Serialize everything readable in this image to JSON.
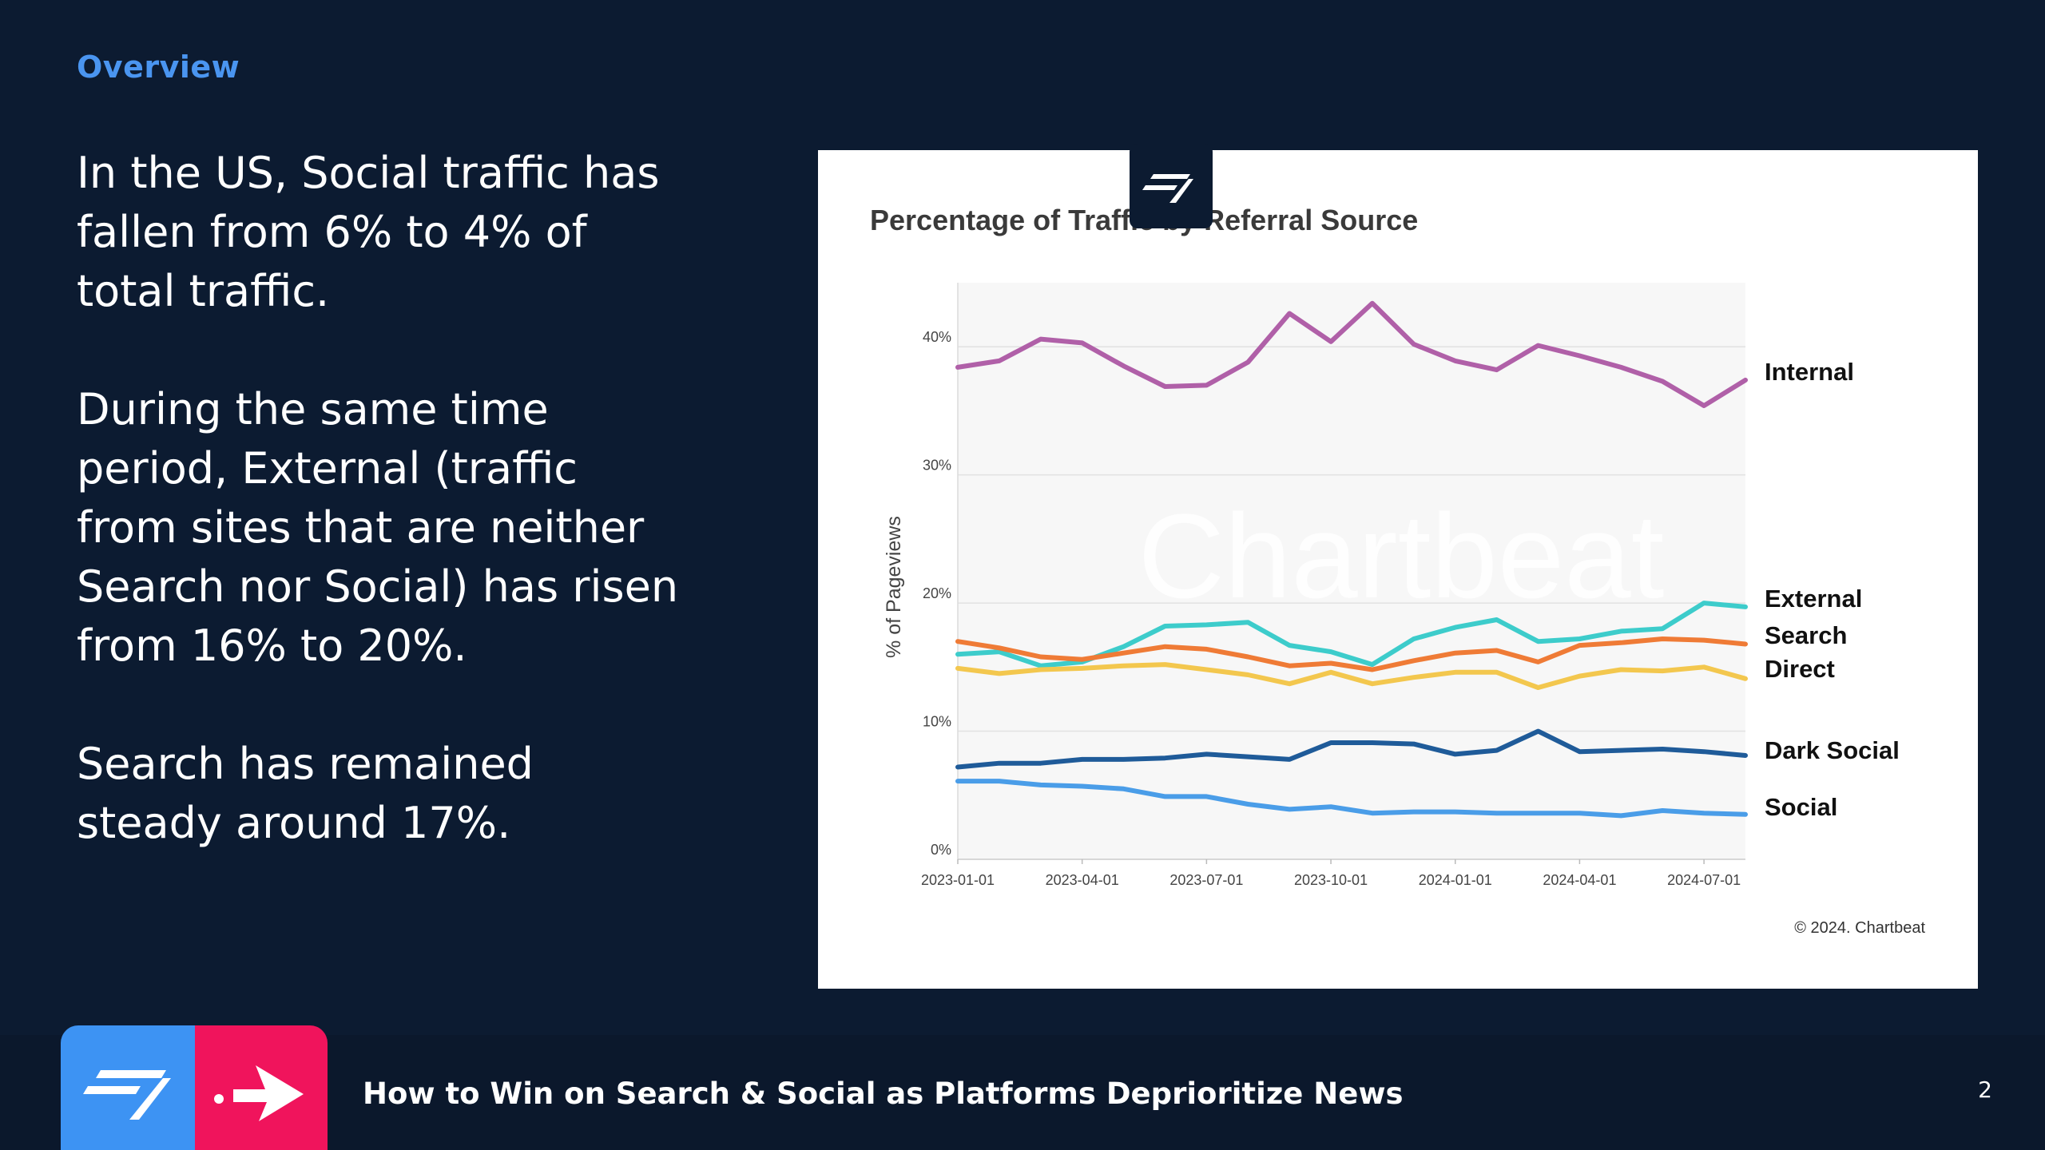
{
  "slide": {
    "section": "Overview",
    "paragraphs": [
      "In the US, Social traffic has fallen from 6% to 4% of total traffic.",
      "During the same time period, External (traffic from sites that are neither Search nor Social) has risen from 16% to 20%.",
      "Search has remained steady around 17%."
    ],
    "footer_title": "How to Win on Search & Social as Platforms Deprioritize News",
    "page_number": "2"
  },
  "colors": {
    "background": "#0c1b31",
    "accent_blue": "#4a95f0",
    "accent_pink": "#f0145c"
  },
  "chart_data": {
    "type": "line",
    "title": "Percentage of Traffic by Referral Source",
    "xlabel": "",
    "ylabel": "% of Pageviews",
    "ylim": [
      0,
      45
    ],
    "yticks": [
      0,
      10,
      20,
      30,
      40
    ],
    "ytick_labels": [
      "0%",
      "10%",
      "20%",
      "30%",
      "40%"
    ],
    "xtick_labels": [
      "2023-01-01",
      "2023-04-01",
      "2023-07-01",
      "2023-10-01",
      "2024-01-01",
      "2024-04-01",
      "2024-07-01"
    ],
    "x": [
      "2023-01-01",
      "2023-02-01",
      "2023-03-01",
      "2023-04-01",
      "2023-05-01",
      "2023-06-01",
      "2023-07-01",
      "2023-08-01",
      "2023-09-01",
      "2023-10-01",
      "2023-11-01",
      "2023-12-01",
      "2024-01-01",
      "2024-02-01",
      "2024-03-01",
      "2024-04-01",
      "2024-05-01",
      "2024-06-01",
      "2024-07-01",
      "2024-08-01"
    ],
    "grid": true,
    "legend": "inline labels at right end of lines",
    "watermark": "Chartbeat",
    "credit": "© 2024. Chartbeat",
    "series": [
      {
        "name": "Internal",
        "color": "#b060a8",
        "values": [
          38.4,
          38.9,
          40.6,
          40.3,
          38.5,
          36.9,
          37.0,
          38.8,
          42.6,
          40.4,
          43.4,
          40.2,
          38.9,
          38.2,
          40.1,
          39.3,
          38.4,
          37.3,
          35.4,
          37.4
        ]
      },
      {
        "name": "External",
        "color": "#3dcccb",
        "values": [
          16.0,
          16.2,
          15.1,
          15.4,
          16.6,
          18.2,
          18.3,
          18.5,
          16.7,
          16.2,
          15.2,
          17.2,
          18.1,
          18.7,
          17.0,
          17.2,
          17.8,
          18.0,
          20.0,
          19.7
        ]
      },
      {
        "name": "Search",
        "color": "#ef7b36",
        "values": [
          17.0,
          16.5,
          15.8,
          15.6,
          16.1,
          16.6,
          16.4,
          15.8,
          15.1,
          15.3,
          14.8,
          15.5,
          16.1,
          16.3,
          15.4,
          16.7,
          16.9,
          17.2,
          17.1,
          16.8
        ]
      },
      {
        "name": "Direct",
        "color": "#f3c74e",
        "values": [
          14.9,
          14.5,
          14.8,
          14.9,
          15.1,
          15.2,
          14.8,
          14.4,
          13.7,
          14.6,
          13.7,
          14.2,
          14.6,
          14.6,
          13.4,
          14.3,
          14.8,
          14.7,
          15.0,
          14.1
        ]
      },
      {
        "name": "Dark Social",
        "color": "#1f5b99",
        "values": [
          7.2,
          7.5,
          7.5,
          7.8,
          7.8,
          7.9,
          8.2,
          8.0,
          7.8,
          9.1,
          9.1,
          9.0,
          8.2,
          8.5,
          10.0,
          8.4,
          8.5,
          8.6,
          8.4,
          8.1
        ]
      },
      {
        "name": "Social",
        "color": "#4a9de8",
        "values": [
          6.1,
          6.1,
          5.8,
          5.7,
          5.5,
          4.9,
          4.9,
          4.3,
          3.9,
          4.1,
          3.6,
          3.7,
          3.7,
          3.6,
          3.6,
          3.6,
          3.4,
          3.8,
          3.6,
          3.5
        ]
      }
    ]
  }
}
